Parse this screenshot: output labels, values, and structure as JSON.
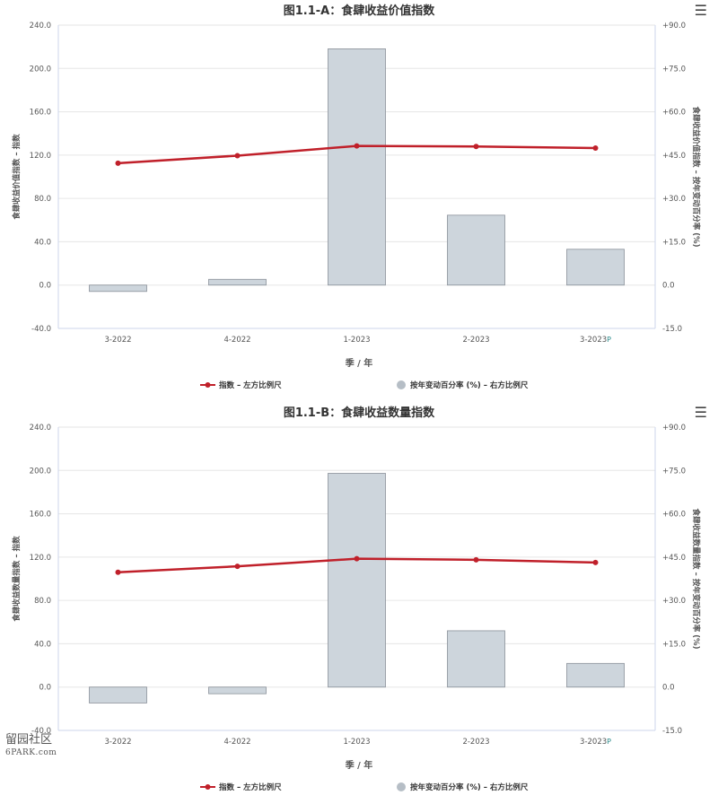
{
  "menu_icon": "hamburger-menu-icon",
  "watermark": {
    "line1": "留园社区",
    "line2": "6PARK.com"
  },
  "chart_data": [
    {
      "type": "bar+line",
      "title": "图1.1-A：食肆收益价值指数",
      "xlabel": "季 / 年",
      "ylabel_left": "食肆收益价值指数 – 指数",
      "ylabel_right": "食肆收益价值指数 – 按年变动百分率 (%)",
      "categories": [
        "3-2022",
        "4-2022",
        "1-2023",
        "2-2023",
        "3-2023"
      ],
      "provisional_marker": "P",
      "y_left": {
        "min": -40,
        "max": 240,
        "ticks": [
          "-40.0",
          "0.0",
          "40.0",
          "80.0",
          "120.0",
          "160.0",
          "200.0",
          "240.0"
        ]
      },
      "y_right": {
        "min": -15,
        "max": 90,
        "ticks": [
          "-15.0",
          "0.0",
          "+15.0",
          "+30.0",
          "+45.0",
          "+60.0",
          "+75.0",
          "+90.0"
        ]
      },
      "series": [
        {
          "name": "指数 – 左方比例尺",
          "kind": "line",
          "axis": "left",
          "color": "#c0202a",
          "values": [
            112.5,
            119.5,
            128.5,
            128.0,
            126.5
          ]
        },
        {
          "name": "按年变动百分率 (%) – 右方比例尺",
          "kind": "bar",
          "axis": "right",
          "color": "#cdd5dc",
          "values": [
            -2.2,
            2.0,
            81.8,
            24.2,
            12.4
          ]
        }
      ],
      "grid": true,
      "legend_position": "bottom-center"
    },
    {
      "type": "bar+line",
      "title": "图1.1-B：食肆收益数量指数",
      "xlabel": "季 / 年",
      "ylabel_left": "食肆收益数量指数 – 指数",
      "ylabel_right": "食肆收益数量指数 – 按年变动百分率 (%)",
      "categories": [
        "3-2022",
        "4-2022",
        "1-2023",
        "2-2023",
        "3-2023"
      ],
      "provisional_marker": "P",
      "y_left": {
        "min": -40,
        "max": 240,
        "ticks": [
          "-40.0",
          "0.0",
          "40.0",
          "80.0",
          "120.0",
          "160.0",
          "200.0",
          "240.0"
        ]
      },
      "y_right": {
        "min": -15,
        "max": 90,
        "ticks": [
          "-15.0",
          "0.0",
          "+15.0",
          "+30.0",
          "+45.0",
          "+60.0",
          "+75.0",
          "+90.0"
        ]
      },
      "series": [
        {
          "name": "指数 – 左方比例尺",
          "kind": "line",
          "axis": "left",
          "color": "#c0202a",
          "values": [
            106.0,
            111.5,
            118.5,
            117.5,
            115.0
          ]
        },
        {
          "name": "按年变动百分率 (%) – 右方比例尺",
          "kind": "bar",
          "axis": "right",
          "color": "#cdd5dc",
          "values": [
            -5.5,
            -2.3,
            74.0,
            19.5,
            8.2
          ]
        }
      ],
      "grid": true,
      "legend_position": "bottom-center"
    }
  ]
}
